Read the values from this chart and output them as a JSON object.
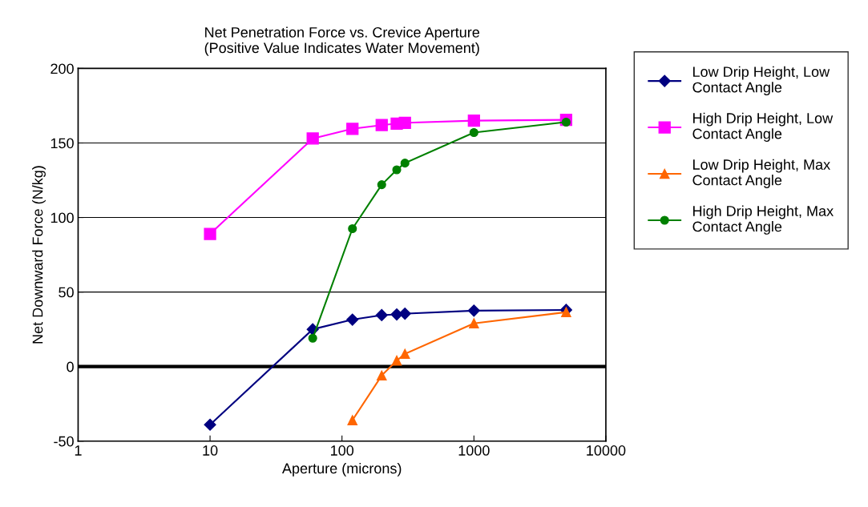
{
  "chart_data": {
    "type": "line",
    "title": "Net Penetration Force vs. Crevice Aperture\n(Positive Value Indicates Water Movement)",
    "xlabel": "Aperture (microns)",
    "ylabel": "Net Downward Force (N/kg)",
    "log": "x",
    "xlim": [
      1,
      10000
    ],
    "xticks": [
      1,
      10,
      100,
      1000,
      10000
    ],
    "ylim": [
      -50,
      200
    ],
    "yticks": [
      -50,
      0,
      50,
      100,
      150,
      200
    ],
    "grid": "y",
    "legend": "right",
    "line_style": "solid",
    "ref_lines": [
      {
        "axis": "y",
        "value": 0,
        "color": "#000000"
      }
    ],
    "series": [
      {
        "name": "Low Drip Height, Low Contact Angle",
        "color": "#000080",
        "marker": "diamond",
        "x": [
          10,
          60,
          120,
          200,
          260,
          300,
          1000,
          5000
        ],
        "values": [
          -39,
          25,
          31.5,
          34.5,
          35,
          35.5,
          37.5,
          38
        ]
      },
      {
        "name": "High Drip Height, Low Contact Angle",
        "color": "#ff00ff",
        "marker": "square",
        "x": [
          10,
          60,
          120,
          200,
          260,
          300,
          1000,
          5000
        ],
        "values": [
          89,
          153,
          159.5,
          162,
          163,
          163.5,
          165,
          165.5
        ]
      },
      {
        "name": "Low Drip Height, Max Contact Angle",
        "color": "#ff6600",
        "marker": "triangle",
        "x": [
          120,
          200,
          260,
          300,
          1000,
          5000
        ],
        "values": [
          -36,
          -6,
          4,
          8.5,
          29,
          36.5
        ]
      },
      {
        "name": "High Drip Height, Max Contact Angle",
        "color": "#008000",
        "marker": "circle",
        "x": [
          60,
          120,
          200,
          260,
          300,
          1000,
          5000
        ],
        "values": [
          19,
          92.5,
          122,
          132,
          136.5,
          157,
          164
        ]
      }
    ]
  }
}
